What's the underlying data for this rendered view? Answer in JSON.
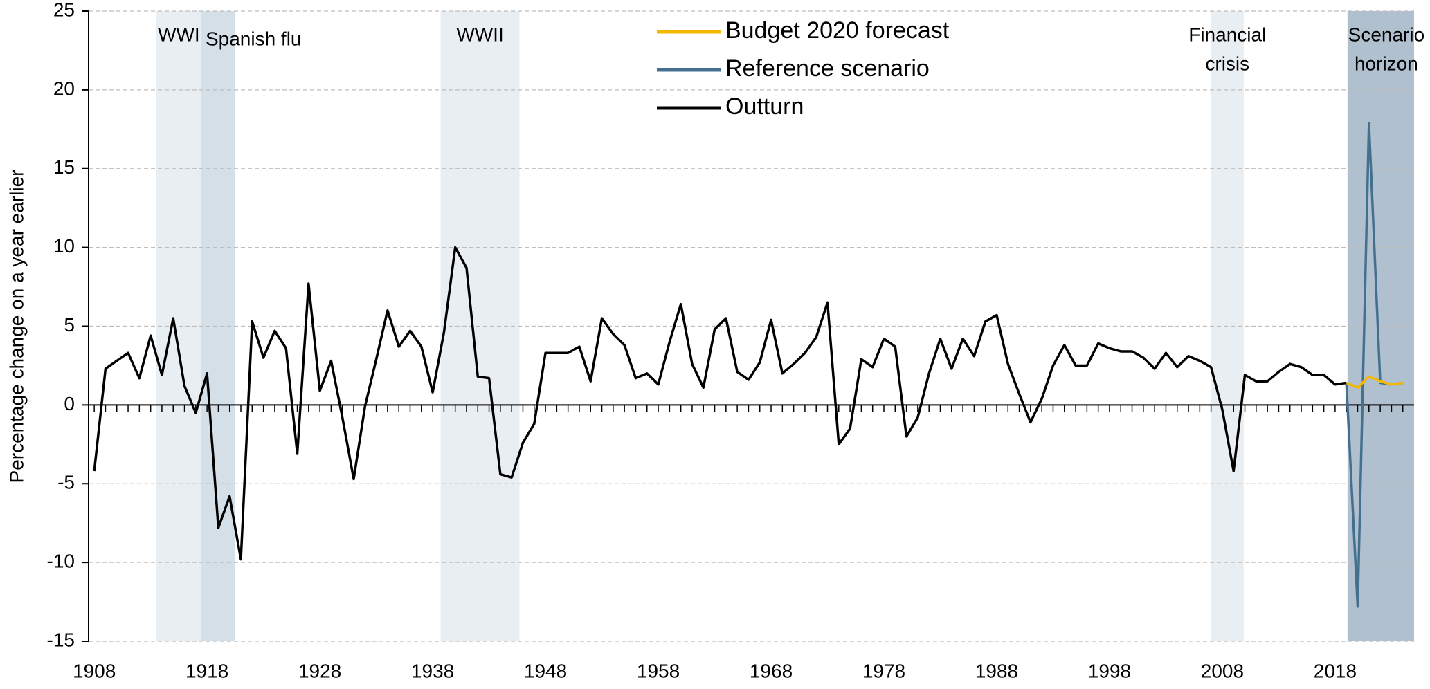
{
  "chart_data": {
    "type": "line",
    "y_label": "Percentage change on a year earlier",
    "x": [
      1908,
      1909,
      1910,
      1911,
      1912,
      1913,
      1914,
      1915,
      1916,
      1917,
      1918,
      1919,
      1920,
      1921,
      1922,
      1923,
      1924,
      1925,
      1926,
      1927,
      1928,
      1929,
      1930,
      1931,
      1932,
      1933,
      1934,
      1935,
      1936,
      1937,
      1938,
      1939,
      1940,
      1941,
      1942,
      1943,
      1944,
      1945,
      1946,
      1947,
      1948,
      1949,
      1950,
      1951,
      1952,
      1953,
      1954,
      1955,
      1956,
      1957,
      1958,
      1959,
      1960,
      1961,
      1962,
      1963,
      1964,
      1965,
      1966,
      1967,
      1968,
      1969,
      1970,
      1971,
      1972,
      1973,
      1974,
      1975,
      1976,
      1977,
      1978,
      1979,
      1980,
      1981,
      1982,
      1983,
      1984,
      1985,
      1986,
      1987,
      1988,
      1989,
      1990,
      1991,
      1992,
      1993,
      1994,
      1995,
      1996,
      1997,
      1998,
      1999,
      2000,
      2001,
      2002,
      2003,
      2004,
      2005,
      2006,
      2007,
      2008,
      2009,
      2010,
      2011,
      2012,
      2013,
      2014,
      2015,
      2016,
      2017,
      2018,
      2019,
      2020,
      2021,
      2022,
      2023,
      2024
    ],
    "series": [
      {
        "name": "Budget 2020 forecast",
        "color": "#f5b800",
        "values": [
          null,
          null,
          null,
          null,
          null,
          null,
          null,
          null,
          null,
          null,
          null,
          null,
          null,
          null,
          null,
          null,
          null,
          null,
          null,
          null,
          null,
          null,
          null,
          null,
          null,
          null,
          null,
          null,
          null,
          null,
          null,
          null,
          null,
          null,
          null,
          null,
          null,
          null,
          null,
          null,
          null,
          null,
          null,
          null,
          null,
          null,
          null,
          null,
          null,
          null,
          null,
          null,
          null,
          null,
          null,
          null,
          null,
          null,
          null,
          null,
          null,
          null,
          null,
          null,
          null,
          null,
          null,
          null,
          null,
          null,
          null,
          null,
          null,
          null,
          null,
          null,
          null,
          null,
          null,
          null,
          null,
          null,
          null,
          null,
          null,
          null,
          null,
          null,
          null,
          null,
          null,
          null,
          null,
          null,
          null,
          null,
          null,
          null,
          null,
          null,
          null,
          null,
          null,
          null,
          null,
          null,
          null,
          null,
          null,
          null,
          null,
          1.4,
          1.1,
          1.8,
          1.5,
          1.3,
          1.4
        ]
      },
      {
        "name": "Reference scenario",
        "color": "#44708f",
        "values": [
          null,
          null,
          null,
          null,
          null,
          null,
          null,
          null,
          null,
          null,
          null,
          null,
          null,
          null,
          null,
          null,
          null,
          null,
          null,
          null,
          null,
          null,
          null,
          null,
          null,
          null,
          null,
          null,
          null,
          null,
          null,
          null,
          null,
          null,
          null,
          null,
          null,
          null,
          null,
          null,
          null,
          null,
          null,
          null,
          null,
          null,
          null,
          null,
          null,
          null,
          null,
          null,
          null,
          null,
          null,
          null,
          null,
          null,
          null,
          null,
          null,
          null,
          null,
          null,
          null,
          null,
          null,
          null,
          null,
          null,
          null,
          null,
          null,
          null,
          null,
          null,
          null,
          null,
          null,
          null,
          null,
          null,
          null,
          null,
          null,
          null,
          null,
          null,
          null,
          null,
          null,
          null,
          null,
          null,
          null,
          null,
          null,
          null,
          null,
          null,
          null,
          null,
          null,
          null,
          null,
          null,
          null,
          null,
          null,
          null,
          null,
          1.4,
          -12.8,
          17.9,
          1.4,
          1.3,
          1.4
        ]
      },
      {
        "name": "Outturn",
        "color": "#000000",
        "values": [
          -4.2,
          2.3,
          2.8,
          3.3,
          1.7,
          4.4,
          1.9,
          5.5,
          1.2,
          -0.5,
          2.0,
          -7.8,
          -5.8,
          -9.8,
          5.3,
          3.0,
          4.7,
          3.6,
          -3.1,
          7.7,
          0.9,
          2.8,
          -0.8,
          -4.7,
          -0.1,
          2.9,
          6.0,
          3.7,
          4.7,
          3.7,
          0.8,
          4.6,
          10.0,
          8.7,
          1.8,
          1.7,
          -4.4,
          -4.6,
          -2.4,
          -1.2,
          3.3,
          3.3,
          3.3,
          3.7,
          1.5,
          5.5,
          4.5,
          3.8,
          1.7,
          2.0,
          1.3,
          4.0,
          6.4,
          2.6,
          1.1,
          4.8,
          5.5,
          2.1,
          1.6,
          2.7,
          5.4,
          2.0,
          2.6,
          3.3,
          4.3,
          6.5,
          -2.5,
          -1.5,
          2.9,
          2.4,
          4.2,
          3.7,
          -2.0,
          -0.8,
          2.0,
          4.2,
          2.3,
          4.2,
          3.1,
          5.3,
          5.7,
          2.6,
          0.7,
          -1.1,
          0.4,
          2.5,
          3.8,
          2.5,
          2.5,
          3.9,
          3.6,
          3.4,
          3.4,
          3.0,
          2.3,
          3.3,
          2.4,
          3.1,
          2.8,
          2.4,
          -0.3,
          -4.2,
          1.9,
          1.5,
          1.5,
          2.1,
          2.6,
          2.4,
          1.9,
          1.9,
          1.3,
          1.4,
          null,
          null,
          null,
          null,
          null
        ]
      }
    ],
    "bands": [
      {
        "label": [
          "WWI"
        ],
        "start": 1913.5,
        "end": 1917.5,
        "color": "#e9eef3"
      },
      {
        "label": [
          "Spanish flu"
        ],
        "start": 1917.5,
        "end": 1920.5,
        "color": "#d5dfe8"
      },
      {
        "label": [
          "WWII"
        ],
        "start": 1938.7,
        "end": 1945.7,
        "color": "#e9eef3"
      },
      {
        "label": [
          "Financial",
          "crisis"
        ],
        "start": 2007.0,
        "end": 2009.9,
        "color": "#e9eef3"
      },
      {
        "label": [
          "Scenario",
          "horizon"
        ],
        "start": 2019.1,
        "end": 2025,
        "color": "#b0c0ce"
      }
    ],
    "xlim": [
      1907.5,
      2025
    ],
    "xticks": [
      1908,
      1918,
      1928,
      1938,
      1948,
      1958,
      1968,
      1978,
      1988,
      1998,
      2008,
      2018
    ],
    "ylim": [
      -15,
      25
    ],
    "yticks": [
      -15,
      -10,
      -5,
      0,
      5,
      10,
      15,
      20,
      25
    ],
    "grid": true,
    "legend": "top"
  }
}
